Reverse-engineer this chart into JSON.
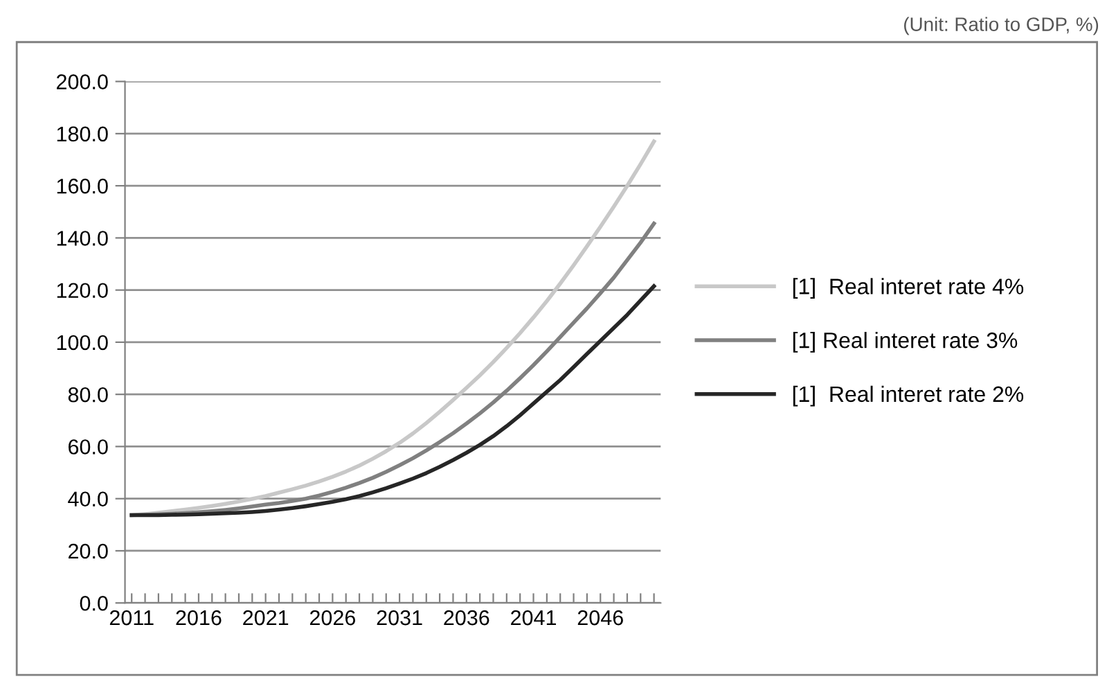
{
  "chart_data": {
    "type": "line",
    "annotations": [
      "(Unit: Ratio to GDP, %)"
    ],
    "categories": [
      "2011",
      null,
      null,
      null,
      null,
      "2016",
      null,
      null,
      null,
      null,
      "2021",
      null,
      null,
      null,
      null,
      "2026",
      null,
      null,
      null,
      null,
      "2031",
      null,
      null,
      null,
      null,
      "2036",
      null,
      null,
      null,
      null,
      "2041",
      null,
      null,
      null,
      null,
      "2046",
      null,
      null,
      null,
      null
    ],
    "series": [
      {
        "name": "[1]  Real interet rate 4%",
        "color": "#c8c8c8",
        "values": [
          33.7,
          34.1,
          34.6,
          35.2,
          35.8,
          36.5,
          37.2,
          38.0,
          38.9,
          39.9,
          41.0,
          42.3,
          43.6,
          45.0,
          46.6,
          48.4,
          50.4,
          52.7,
          55.3,
          58.2,
          61.4,
          65.0,
          69.0,
          73.3,
          77.8,
          82.5,
          87.3,
          92.4,
          97.8,
          103.5,
          109.5,
          115.8,
          122.5,
          129.5,
          136.8,
          144.3,
          152.0,
          160.0,
          168.3,
          177.0
        ]
      },
      {
        "name": "[1] Real interet rate 3%",
        "color": "#808080",
        "values": [
          33.7,
          33.8,
          34.0,
          34.2,
          34.5,
          34.8,
          35.2,
          35.7,
          36.3,
          37.0,
          37.7,
          38.3,
          39.1,
          40.0,
          41.2,
          42.6,
          44.2,
          46.0,
          48.0,
          50.3,
          52.8,
          55.5,
          58.5,
          61.7,
          65.1,
          68.8,
          72.7,
          76.9,
          81.4,
          86.2,
          91.2,
          96.5,
          102.0,
          107.5,
          113.0,
          118.8,
          124.8,
          131.5,
          138.2,
          145.5
        ]
      },
      {
        "name": "[1]  Real interet rate 2%",
        "color": "#262626",
        "values": [
          33.7,
          33.7,
          33.7,
          33.8,
          33.9,
          34.0,
          34.2,
          34.4,
          34.6,
          34.9,
          35.3,
          35.8,
          36.4,
          37.1,
          37.9,
          38.8,
          39.8,
          41.0,
          42.4,
          44.0,
          45.8,
          47.7,
          49.8,
          52.2,
          54.8,
          57.6,
          60.6,
          64.0,
          67.8,
          72.0,
          76.5,
          81.0,
          85.5,
          90.5,
          95.5,
          100.5,
          105.5,
          110.5,
          116.0,
          121.5
        ]
      }
    ],
    "ylim": [
      0,
      200
    ],
    "yticks": [
      {
        "value": 0,
        "label": "0.0"
      },
      {
        "value": 20,
        "label": "20.0"
      },
      {
        "value": 40,
        "label": "40.0"
      },
      {
        "value": 60,
        "label": "60.0"
      },
      {
        "value": 80,
        "label": "80.0"
      },
      {
        "value": 100,
        "label": "100.0"
      },
      {
        "value": 120,
        "label": "120.0"
      },
      {
        "value": 140,
        "label": "140.0"
      },
      {
        "value": 160,
        "label": "160.0"
      },
      {
        "value": 180,
        "label": "180.0"
      },
      {
        "value": 200,
        "label": "200.0"
      }
    ],
    "grid": "y",
    "legend": "right",
    "marker": "none",
    "line_style": "solid"
  }
}
